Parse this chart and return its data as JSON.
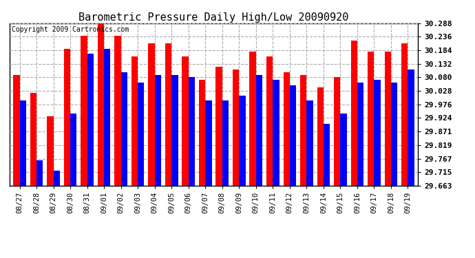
{
  "title": "Barometric Pressure Daily High/Low 20090920",
  "copyright": "Copyright 2009 Cartronics.com",
  "dates": [
    "08/27",
    "08/28",
    "08/29",
    "08/30",
    "08/31",
    "09/01",
    "09/02",
    "09/03",
    "09/04",
    "09/05",
    "09/06",
    "09/07",
    "09/08",
    "09/09",
    "09/10",
    "09/11",
    "09/12",
    "09/13",
    "09/14",
    "09/15",
    "09/16",
    "09/17",
    "09/18",
    "09/19"
  ],
  "highs": [
    30.09,
    30.02,
    29.93,
    30.19,
    30.24,
    30.29,
    30.24,
    30.16,
    30.21,
    30.21,
    30.16,
    30.07,
    30.12,
    30.11,
    30.18,
    30.16,
    30.1,
    30.09,
    30.04,
    30.08,
    30.22,
    30.18,
    30.18,
    30.21
  ],
  "lows": [
    29.99,
    29.76,
    29.72,
    29.94,
    30.17,
    30.19,
    30.1,
    30.06,
    30.09,
    30.09,
    30.08,
    29.99,
    29.99,
    30.01,
    30.09,
    30.07,
    30.05,
    29.99,
    29.9,
    29.94,
    30.06,
    30.07,
    30.06,
    30.11
  ],
  "ylim_min": 29.663,
  "ylim_max": 30.288,
  "yticks": [
    29.663,
    29.715,
    29.767,
    29.819,
    29.871,
    29.924,
    29.976,
    30.028,
    30.08,
    30.132,
    30.184,
    30.236,
    30.288
  ],
  "high_color": "#ff0000",
  "low_color": "#0000ff",
  "background_color": "#ffffff",
  "grid_color": "#aaaaaa",
  "title_fontsize": 11,
  "copyright_fontsize": 7,
  "tick_fontsize": 7.5,
  "ytick_fontsize": 8
}
